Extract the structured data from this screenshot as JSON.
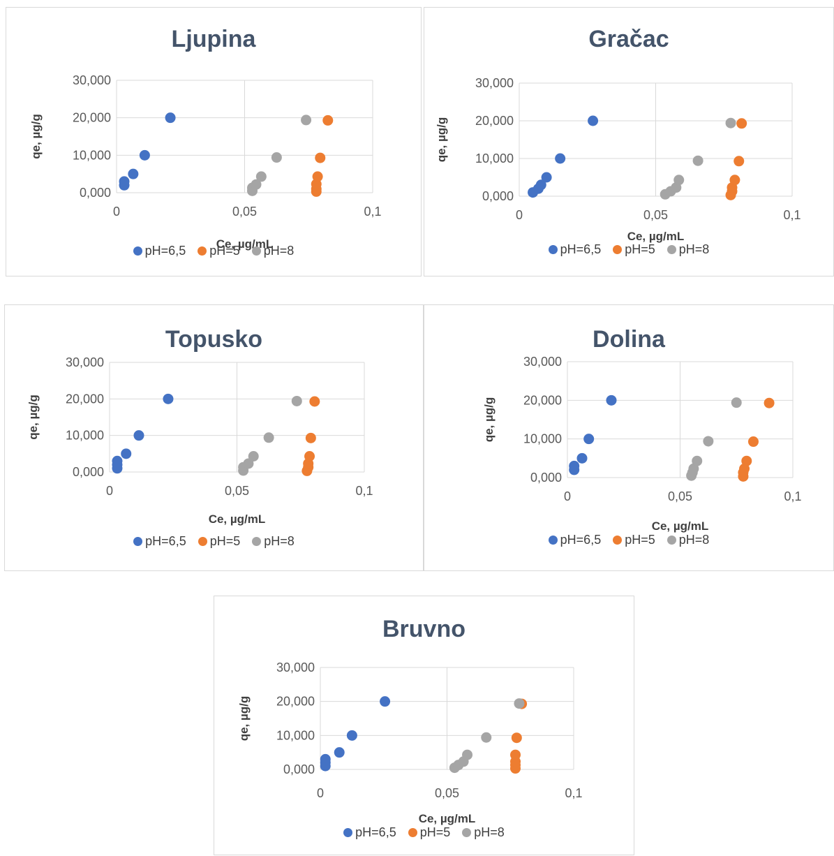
{
  "colors": {
    "pH=6,5": "#4472c4",
    "pH=5": "#ed7d31",
    "pH=8": "#a5a5a5"
  },
  "chart_data": [
    {
      "type": "scatter",
      "title": "Ljupina",
      "xlabel": "Ce, µg/mL",
      "ylabel": "qe, µg/g",
      "xlim": [
        0,
        0.1
      ],
      "ylim": [
        0,
        30
      ],
      "x_ticks": [
        "0",
        "0,05",
        "0,1"
      ],
      "y_ticks": [
        "0,000",
        "10,000",
        "20,000",
        "30,000"
      ],
      "legend_position": "bottom",
      "series": [
        {
          "name": "pH=6,5",
          "x": [
            0.003,
            0.003,
            0.0065,
            0.011,
            0.021
          ],
          "y": [
            2.0,
            3.0,
            5.0,
            10.0,
            20.0
          ]
        },
        {
          "name": "pH=5",
          "x": [
            0.078,
            0.078,
            0.078,
            0.0785,
            0.0795,
            0.0825
          ],
          "y": [
            0.3,
            1.0,
            2.3,
            4.3,
            9.3,
            19.3
          ]
        },
        {
          "name": "pH=8",
          "x": [
            0.053,
            0.053,
            0.0545,
            0.0565,
            0.0625,
            0.074
          ],
          "y": [
            0.5,
            1.3,
            2.2,
            4.3,
            9.4,
            19.4
          ]
        }
      ]
    },
    {
      "type": "scatter",
      "title": "Gračac",
      "xlabel": "Ce, µg/mL",
      "ylabel": "qe, µg/g",
      "xlim": [
        0,
        0.1
      ],
      "ylim": [
        0,
        30
      ],
      "x_ticks": [
        "0",
        "0,05",
        "0,1"
      ],
      "y_ticks": [
        "0,000",
        "10,000",
        "20,000",
        "30,000"
      ],
      "legend_position": "bottom",
      "series": [
        {
          "name": "pH=6,5",
          "x": [
            0.005,
            0.007,
            0.008,
            0.01,
            0.015,
            0.027
          ],
          "y": [
            1.0,
            2.0,
            3.0,
            5.0,
            10.0,
            20.0
          ]
        },
        {
          "name": "pH=5",
          "x": [
            0.0775,
            0.078,
            0.078,
            0.079,
            0.0805,
            0.0815
          ],
          "y": [
            0.3,
            1.3,
            2.3,
            4.3,
            9.3,
            19.3
          ]
        },
        {
          "name": "pH=8",
          "x": [
            0.0535,
            0.0555,
            0.0575,
            0.0585,
            0.0655,
            0.0775
          ],
          "y": [
            0.5,
            1.3,
            2.3,
            4.3,
            9.4,
            19.4
          ]
        }
      ]
    },
    {
      "type": "scatter",
      "title": "Topusko",
      "xlabel": "Ce, µg/mL",
      "ylabel": "qe, µg/g",
      "xlim": [
        0,
        0.1
      ],
      "ylim": [
        0,
        30
      ],
      "x_ticks": [
        "0",
        "0,05",
        "0,1"
      ],
      "y_ticks": [
        "0,000",
        "10,000",
        "20,000",
        "30,000"
      ],
      "legend_position": "bottom",
      "series": [
        {
          "name": "pH=6,5",
          "x": [
            0.003,
            0.003,
            0.003,
            0.0065,
            0.0115,
            0.023
          ],
          "y": [
            1.0,
            2.0,
            3.0,
            5.0,
            10.0,
            20.0
          ]
        },
        {
          "name": "pH=5",
          "x": [
            0.0775,
            0.078,
            0.078,
            0.0785,
            0.079,
            0.0805
          ],
          "y": [
            0.3,
            1.3,
            2.3,
            4.3,
            9.3,
            19.3
          ]
        },
        {
          "name": "pH=8",
          "x": [
            0.0525,
            0.0525,
            0.0545,
            0.0565,
            0.0625,
            0.0735
          ],
          "y": [
            0.4,
            1.3,
            2.3,
            4.3,
            9.4,
            19.4
          ]
        }
      ]
    },
    {
      "type": "scatter",
      "title": "Dolina",
      "xlabel": "Ce, µg/mL",
      "ylabel": "qe, µg/g",
      "xlim": [
        0,
        0.1
      ],
      "ylim": [
        0,
        30
      ],
      "x_ticks": [
        "0",
        "0,05",
        "0,1"
      ],
      "y_ticks": [
        "0,000",
        "10,000",
        "20,000",
        "30,000"
      ],
      "legend_position": "bottom",
      "series": [
        {
          "name": "pH=6,5",
          "x": [
            0.003,
            0.003,
            0.0065,
            0.0095,
            0.0195
          ],
          "y": [
            2.0,
            3.0,
            5.0,
            10.0,
            20.0
          ]
        },
        {
          "name": "pH=5",
          "x": [
            0.078,
            0.078,
            0.0785,
            0.0795,
            0.0825,
            0.0895
          ],
          "y": [
            0.3,
            1.3,
            2.3,
            4.3,
            9.3,
            19.3
          ]
        },
        {
          "name": "pH=8",
          "x": [
            0.055,
            0.0555,
            0.056,
            0.0575,
            0.0625,
            0.075
          ],
          "y": [
            0.5,
            1.3,
            2.3,
            4.3,
            9.4,
            19.4
          ]
        }
      ]
    },
    {
      "type": "scatter",
      "title": "Bruvno",
      "xlabel": "Ce, µg/mL",
      "ylabel": "qe, µg/g",
      "xlim": [
        0,
        0.1
      ],
      "ylim": [
        0,
        30
      ],
      "x_ticks": [
        "0",
        "0,05",
        "0,1"
      ],
      "y_ticks": [
        "0,000",
        "10,000",
        "20,000",
        "30,000"
      ],
      "legend_position": "bottom",
      "series": [
        {
          "name": "pH=6,5",
          "x": [
            0.002,
            0.002,
            0.002,
            0.0075,
            0.0125,
            0.0255
          ],
          "y": [
            1.0,
            2.0,
            3.0,
            5.0,
            10.0,
            20.0
          ]
        },
        {
          "name": "pH=5",
          "x": [
            0.077,
            0.077,
            0.077,
            0.077,
            0.0775,
            0.0795
          ],
          "y": [
            0.3,
            1.3,
            2.3,
            4.3,
            9.3,
            19.3
          ]
        },
        {
          "name": "pH=8",
          "x": [
            0.053,
            0.0545,
            0.0565,
            0.058,
            0.0655,
            0.0785
          ],
          "y": [
            0.5,
            1.3,
            2.3,
            4.3,
            9.4,
            19.4
          ]
        }
      ]
    }
  ]
}
